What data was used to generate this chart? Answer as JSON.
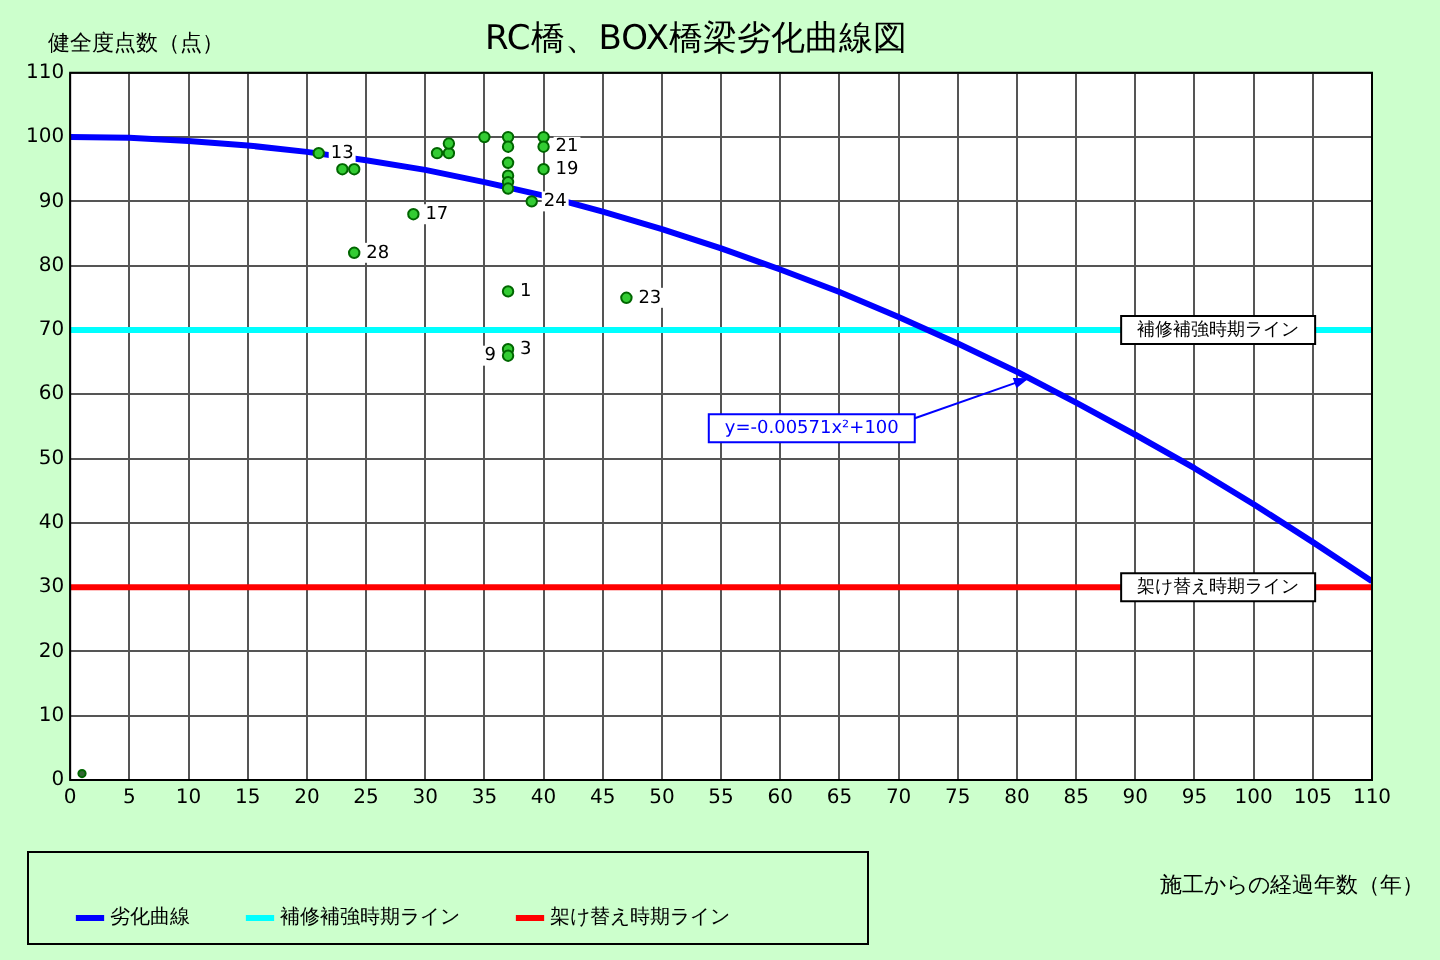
{
  "chart_data": {
    "type": "scatter",
    "title": "RC橋、BOX橋梁劣化曲線図",
    "xlabel": "施工からの経過年数（年）",
    "ylabel": "健全度点数（点）",
    "xlim": [
      0,
      110
    ],
    "xticks": [
      0,
      5,
      10,
      15,
      20,
      25,
      30,
      35,
      40,
      45,
      50,
      55,
      60,
      65,
      70,
      75,
      80,
      85,
      90,
      95,
      100,
      105,
      110
    ],
    "ylim": [
      0,
      110
    ],
    "yticks": [
      0,
      10,
      20,
      30,
      40,
      50,
      60,
      70,
      80,
      90,
      100,
      110
    ],
    "grid": true,
    "legend": "bottom",
    "marker": "circle",
    "series": [
      {
        "type": "line",
        "name": "劣化曲線",
        "color": "#0000ff",
        "marker": "none",
        "x": [
          0,
          5,
          10,
          15,
          20,
          25,
          30,
          35,
          40,
          45,
          50,
          55,
          60,
          65,
          70,
          75,
          80,
          85,
          90,
          95,
          100,
          105,
          110
        ],
        "values": [
          100,
          99.9,
          99.4,
          98.7,
          97.7,
          96.4,
          94.9,
          93,
          90.9,
          88.4,
          85.7,
          82.7,
          79.4,
          75.9,
          72,
          67.9,
          63.5,
          58.7,
          53.7,
          48.5,
          42.9,
          37,
          30.9
        ]
      },
      {
        "type": "line",
        "name": "補修補強時期ライン",
        "color": "#00ffff",
        "marker": "none",
        "x": [
          0,
          110
        ],
        "values": [
          70,
          70
        ]
      },
      {
        "type": "line",
        "name": "架け替え時期ライン",
        "color": "#ff0000",
        "marker": "none",
        "x": [
          0,
          110
        ],
        "values": [
          30,
          30
        ]
      },
      {
        "type": "scatter",
        "color": "#33cc33",
        "x": [
          21,
          23,
          24,
          24,
          29,
          31,
          32,
          32,
          35,
          37,
          37,
          37,
          37,
          37,
          37,
          40,
          40,
          40,
          39,
          37,
          47,
          37,
          37
        ],
        "values": [
          97.5,
          95,
          95,
          82,
          88,
          97.5,
          97.5,
          99,
          100,
          100,
          98.5,
          96,
          94,
          93,
          92,
          100,
          98.5,
          95,
          90,
          76,
          75,
          67,
          66
        ]
      },
      {
        "type": "scatter",
        "color": "#336633",
        "x": [
          1
        ],
        "values": [
          1
        ]
      }
    ],
    "annotations": [
      {
        "text": "13",
        "x": 21,
        "y": 97.5
      },
      {
        "text": "28",
        "x": 24,
        "y": 82
      },
      {
        "text": "17",
        "x": 29,
        "y": 88
      },
      {
        "text": "21",
        "x": 40,
        "y": 98.5
      },
      {
        "text": "19",
        "x": 40,
        "y": 95
      },
      {
        "text": "24",
        "x": 39,
        "y": 90
      },
      {
        "text": "1",
        "x": 37,
        "y": 76
      },
      {
        "text": "23",
        "x": 47,
        "y": 75
      },
      {
        "text": "3",
        "x": 37,
        "y": 67
      },
      {
        "text": "9",
        "x": 37,
        "y": 66
      },
      {
        "text": "補修補強時期ライン",
        "x": 97,
        "y": 70
      },
      {
        "text": "架け替え時期ライン",
        "x": 97,
        "y": 30
      },
      {
        "text": "y=-0.00571x²+100",
        "x": 81,
        "y": 62.5
      }
    ]
  }
}
